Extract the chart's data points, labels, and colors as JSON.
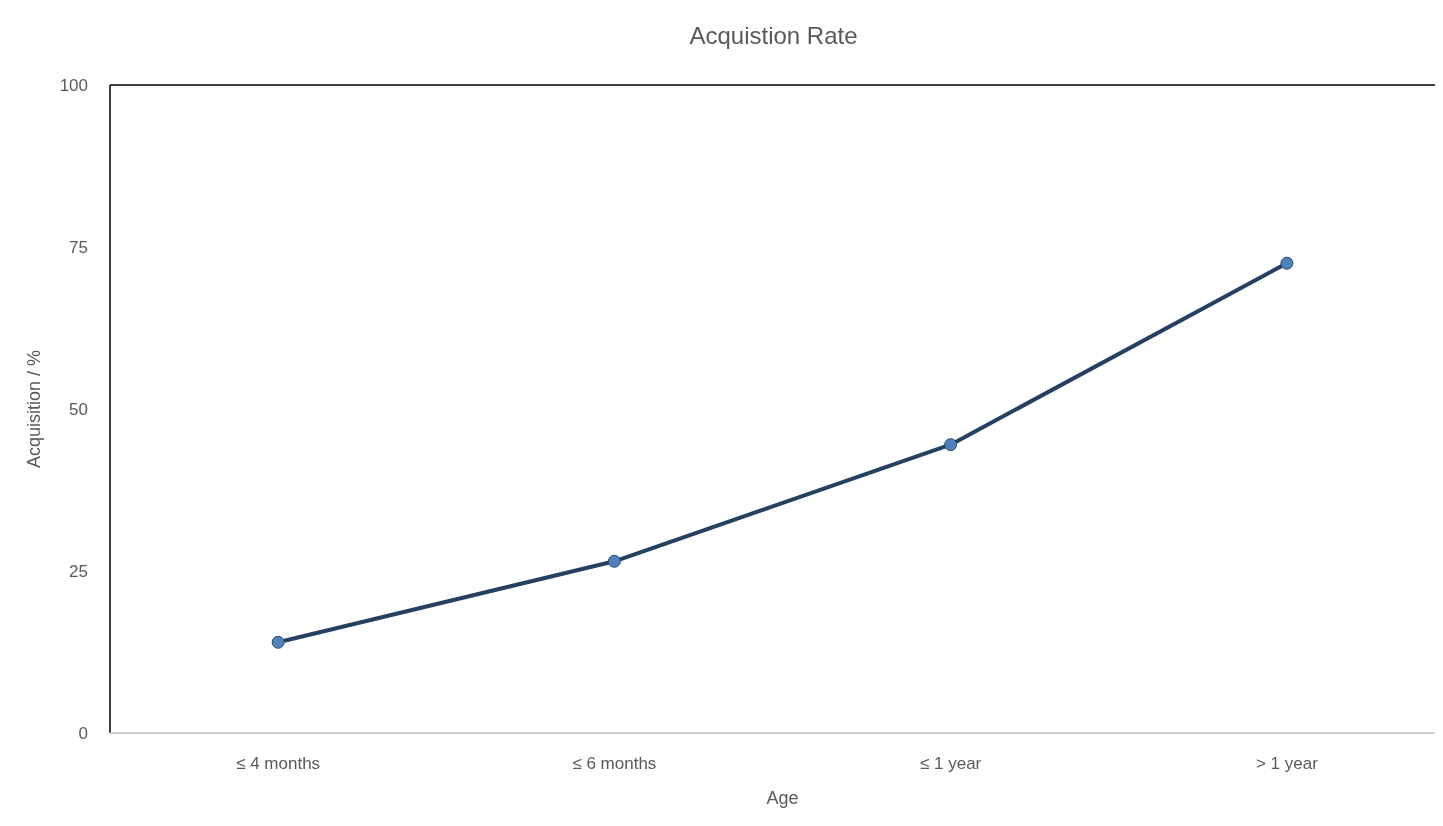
{
  "chart_data": {
    "type": "line",
    "title": "Acquistion Rate",
    "xlabel": "Age",
    "ylabel": "Acquisition / %",
    "categories": [
      "≤ 4 months",
      "≤ 6 months",
      "≤ 1 year",
      "> 1 year"
    ],
    "series": [
      {
        "color": "#254061",
        "values": [
          14,
          26.5,
          44.5,
          72.5
        ]
      }
    ],
    "ylim": [
      0,
      100
    ],
    "yticks": [
      0,
      25,
      50,
      75,
      100
    ],
    "grid": false,
    "marker": "circle",
    "line_style": "solid"
  }
}
